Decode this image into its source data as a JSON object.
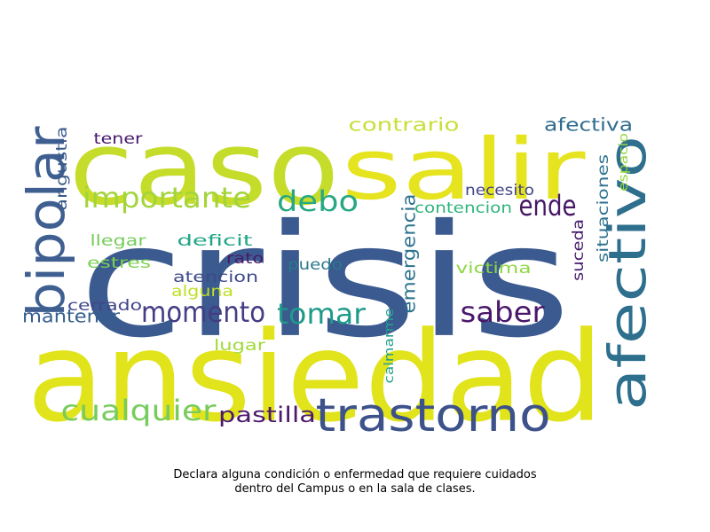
{
  "chart_data": {
    "type": "wordcloud",
    "caption_lines": [
      "Declara alguna condición o enfermedad que requiere cuidados",
      "dentro del Campus o en la sala de clases."
    ],
    "words": [
      {
        "text": "crisis",
        "color": "#3b5a8f"
      },
      {
        "text": "ansiedad",
        "color": "#e1e31b"
      },
      {
        "text": "caso",
        "color": "#c6dc2a"
      },
      {
        "text": "salir",
        "color": "#e6e31f"
      },
      {
        "text": "bipolar",
        "color": "#3f5f91"
      },
      {
        "text": "afectivo",
        "color": "#2e6f8d"
      },
      {
        "text": "trastorno",
        "color": "#3d528b"
      },
      {
        "text": "importante",
        "color": "#a3d53a"
      },
      {
        "text": "debo",
        "color": "#27a882"
      },
      {
        "text": "ende",
        "color": "#471865"
      },
      {
        "text": "saber",
        "color": "#4a176b"
      },
      {
        "text": "tomar",
        "color": "#1f9a8a"
      },
      {
        "text": "momento",
        "color": "#433d84"
      },
      {
        "text": "cualquier",
        "color": "#78cc5d"
      },
      {
        "text": "pastilla",
        "color": "#4d1a6e"
      },
      {
        "text": "mantener",
        "color": "#355f8d"
      },
      {
        "text": "emergencia",
        "color": "#2c728e"
      },
      {
        "text": "contrario",
        "color": "#c9df3a"
      },
      {
        "text": "afectiva",
        "color": "#2f6c8e"
      },
      {
        "text": "tener",
        "color": "#46186a"
      },
      {
        "text": "angustia",
        "color": "#3b5a8b"
      },
      {
        "text": "necesito",
        "color": "#414487"
      },
      {
        "text": "contencion",
        "color": "#2fb47c"
      },
      {
        "text": "llegar",
        "color": "#75cd5a"
      },
      {
        "text": "deficit",
        "color": "#22a585"
      },
      {
        "text": "rato",
        "color": "#4a1869"
      },
      {
        "text": "estres",
        "color": "#7ad151"
      },
      {
        "text": "puedo",
        "color": "#2a788e"
      },
      {
        "text": "atencion",
        "color": "#3d4a89"
      },
      {
        "text": "alguna",
        "color": "#bddf26"
      },
      {
        "text": "cerrado",
        "color": "#404688"
      },
      {
        "text": "victima",
        "color": "#8fd744"
      },
      {
        "text": "suceda",
        "color": "#471a6b"
      },
      {
        "text": "situaciones",
        "color": "#2d718e"
      },
      {
        "text": "espacio",
        "color": "#95d840"
      },
      {
        "text": "lugar",
        "color": "#a0da39"
      },
      {
        "text": "calmarme",
        "color": "#25a18e"
      }
    ]
  }
}
